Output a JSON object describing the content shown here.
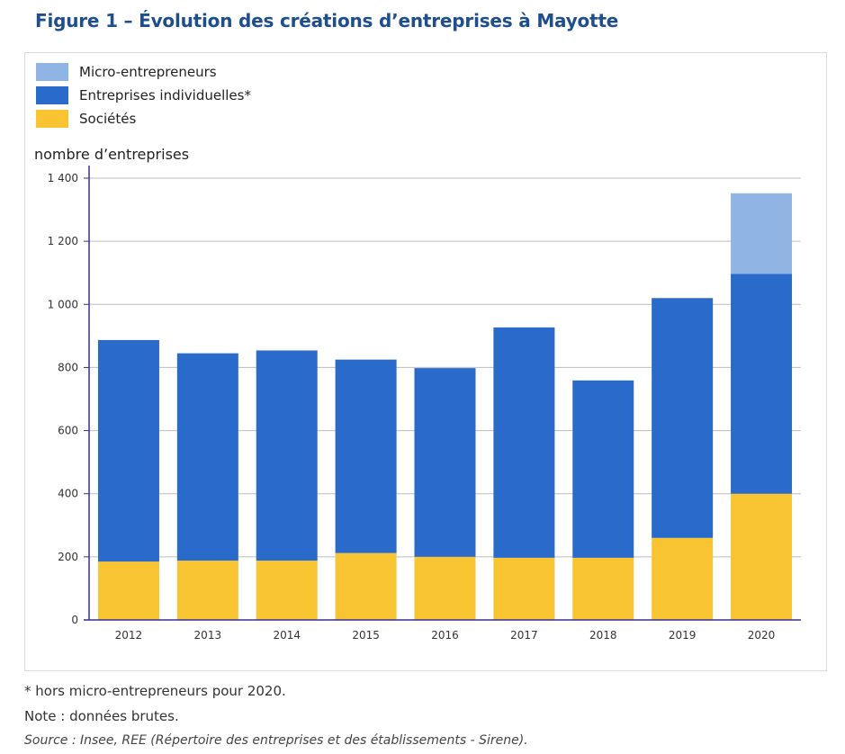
{
  "figure": {
    "title": "Figure 1 – Évolution des créations d’entreprises à Mayotte"
  },
  "chart_data": {
    "type": "bar",
    "stacked": true,
    "categories": [
      "2012",
      "2013",
      "2014",
      "2015",
      "2016",
      "2017",
      "2018",
      "2019",
      "2020"
    ],
    "series": [
      {
        "name": "Sociétés",
        "color": "#f9c432",
        "values": [
          185,
          188,
          188,
          212,
          200,
          197,
          197,
          260,
          400
        ]
      },
      {
        "name": "Entreprises individuelles*",
        "color": "#2a6acb",
        "values": [
          702,
          657,
          666,
          613,
          598,
          730,
          562,
          760,
          697
        ]
      },
      {
        "name": "Micro-entrepreneurs",
        "color": "#90b4e4",
        "values": [
          0,
          0,
          0,
          0,
          0,
          0,
          0,
          0,
          255
        ]
      }
    ],
    "ylabel": "nombre d’entreprises",
    "ylim": [
      0,
      1400
    ],
    "yticks": [
      0,
      200,
      400,
      600,
      800,
      1000,
      1200,
      1400
    ],
    "ytick_labels": [
      "0",
      "200",
      "400",
      "600",
      "800",
      "1 000",
      "1 200",
      "1 400"
    ],
    "grid": true,
    "legend_position": "top-left",
    "legend_order": [
      "Micro-entrepreneurs",
      "Entreprises individuelles*",
      "Sociétés"
    ]
  },
  "notes": {
    "footnote": "* hors micro-entrepreneurs pour 2020.",
    "note": "Note : données brutes.",
    "source": "Source : Insee, REE (Répertoire des entreprises et des établissements - Sirene)."
  }
}
